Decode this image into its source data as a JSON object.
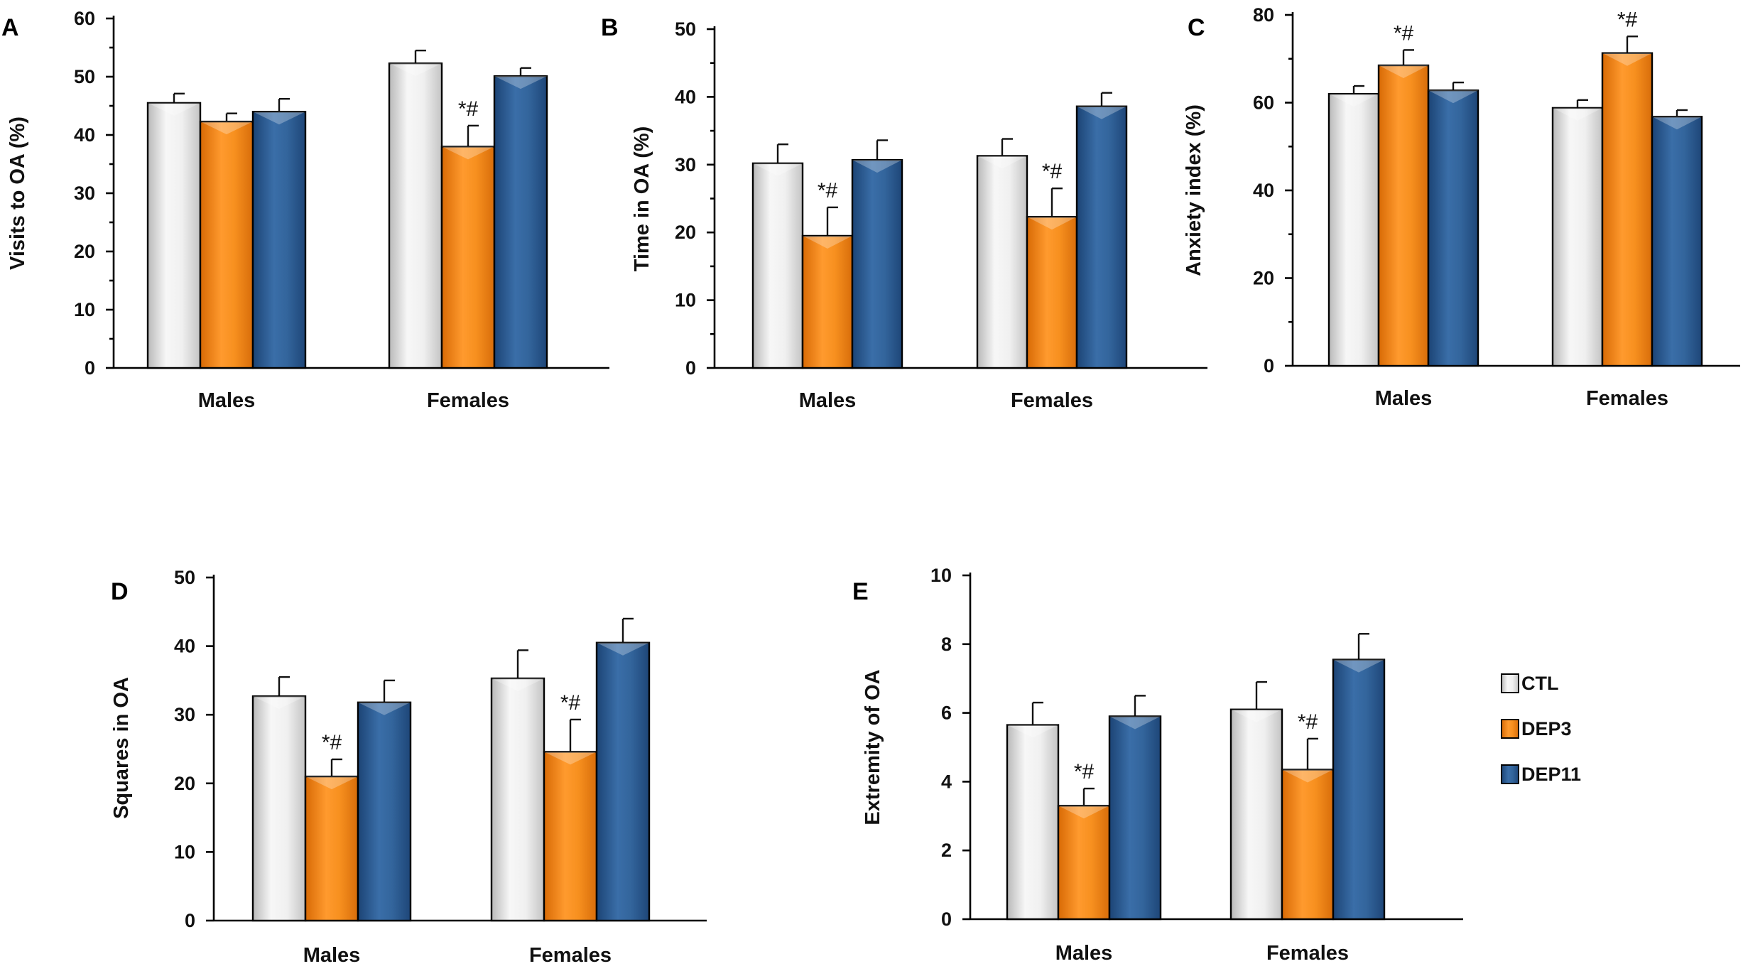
{
  "legend": [
    {
      "name": "CTL",
      "color": "#e6e6e6"
    },
    {
      "name": "DEP3",
      "color": "#f28a1e"
    },
    {
      "name": "DEP11",
      "color": "#2e5f96"
    }
  ],
  "chart_data": [
    {
      "panel": "A",
      "type": "bar",
      "ylabel": "Visits to OA (%)",
      "categories": [
        "Males",
        "Females"
      ],
      "ylim": [
        0,
        60
      ],
      "yticks": [
        0,
        10,
        20,
        30,
        40,
        50,
        60
      ],
      "minor_ticks": true,
      "series": [
        {
          "name": "CTL",
          "values": [
            45.5,
            52.3
          ],
          "errors": [
            1.6,
            2.2
          ]
        },
        {
          "name": "DEP3",
          "values": [
            42.3,
            38.0
          ],
          "errors": [
            1.4,
            3.6
          ]
        },
        {
          "name": "DEP11",
          "values": [
            44.0,
            50.1
          ],
          "errors": [
            2.2,
            1.4
          ]
        }
      ],
      "annotations": [
        {
          "category": 1,
          "series": 1,
          "text": "*#"
        }
      ]
    },
    {
      "panel": "B",
      "type": "bar",
      "ylabel": "Time in OA  (%)",
      "categories": [
        "Males",
        "Females"
      ],
      "ylim": [
        0,
        50
      ],
      "yticks": [
        0,
        10,
        20,
        30,
        40,
        50
      ],
      "minor_ticks": true,
      "series": [
        {
          "name": "CTL",
          "values": [
            30.2,
            31.3
          ],
          "errors": [
            2.8,
            2.5
          ]
        },
        {
          "name": "DEP3",
          "values": [
            19.5,
            22.3
          ],
          "errors": [
            4.2,
            4.2
          ]
        },
        {
          "name": "DEP11",
          "values": [
            30.7,
            38.6
          ],
          "errors": [
            2.9,
            2.0
          ]
        }
      ],
      "annotations": [
        {
          "category": 0,
          "series": 1,
          "text": "*#"
        },
        {
          "category": 1,
          "series": 1,
          "text": "*#"
        }
      ]
    },
    {
      "panel": "C",
      "type": "bar",
      "ylabel": "Anxiety index (%)",
      "categories": [
        "Males",
        "Females"
      ],
      "ylim": [
        0,
        80
      ],
      "yticks": [
        0,
        20,
        40,
        60,
        80
      ],
      "minor_ticks": true,
      "series": [
        {
          "name": "CTL",
          "values": [
            62.0,
            58.8
          ],
          "errors": [
            1.8,
            1.8
          ]
        },
        {
          "name": "DEP3",
          "values": [
            68.5,
            71.3
          ],
          "errors": [
            3.5,
            3.8
          ]
        },
        {
          "name": "DEP11",
          "values": [
            62.8,
            56.8
          ],
          "errors": [
            1.8,
            1.5
          ]
        }
      ],
      "annotations": [
        {
          "category": 0,
          "series": 1,
          "text": "*#"
        },
        {
          "category": 1,
          "series": 1,
          "text": "*#"
        }
      ]
    },
    {
      "panel": "D",
      "type": "bar",
      "ylabel": "Squares in OA",
      "categories": [
        "Males",
        "Females"
      ],
      "ylim": [
        0,
        50
      ],
      "yticks": [
        0,
        10,
        20,
        30,
        40,
        50
      ],
      "minor_ticks": false,
      "series": [
        {
          "name": "CTL",
          "values": [
            32.7,
            35.3
          ],
          "errors": [
            2.8,
            4.1
          ]
        },
        {
          "name": "DEP3",
          "values": [
            21.0,
            24.6
          ],
          "errors": [
            2.5,
            4.7
          ]
        },
        {
          "name": "DEP11",
          "values": [
            31.8,
            40.5
          ],
          "errors": [
            3.2,
            3.5
          ]
        }
      ],
      "annotations": [
        {
          "category": 0,
          "series": 1,
          "text": "*#"
        },
        {
          "category": 1,
          "series": 1,
          "text": "*#"
        }
      ]
    },
    {
      "panel": "E",
      "type": "bar",
      "ylabel": "Extremity of OA",
      "categories": [
        "Males",
        "Females"
      ],
      "ylim": [
        0,
        10
      ],
      "yticks": [
        0,
        2,
        4,
        6,
        8,
        10
      ],
      "minor_ticks": false,
      "series": [
        {
          "name": "CTL",
          "values": [
            5.65,
            6.1
          ],
          "errors": [
            0.65,
            0.8
          ]
        },
        {
          "name": "DEP3",
          "values": [
            3.3,
            4.35
          ],
          "errors": [
            0.5,
            0.9
          ]
        },
        {
          "name": "DEP11",
          "values": [
            5.9,
            7.55
          ],
          "errors": [
            0.6,
            0.75
          ]
        }
      ],
      "annotations": [
        {
          "category": 0,
          "series": 1,
          "text": "*#"
        },
        {
          "category": 1,
          "series": 1,
          "text": "*#"
        }
      ]
    }
  ]
}
